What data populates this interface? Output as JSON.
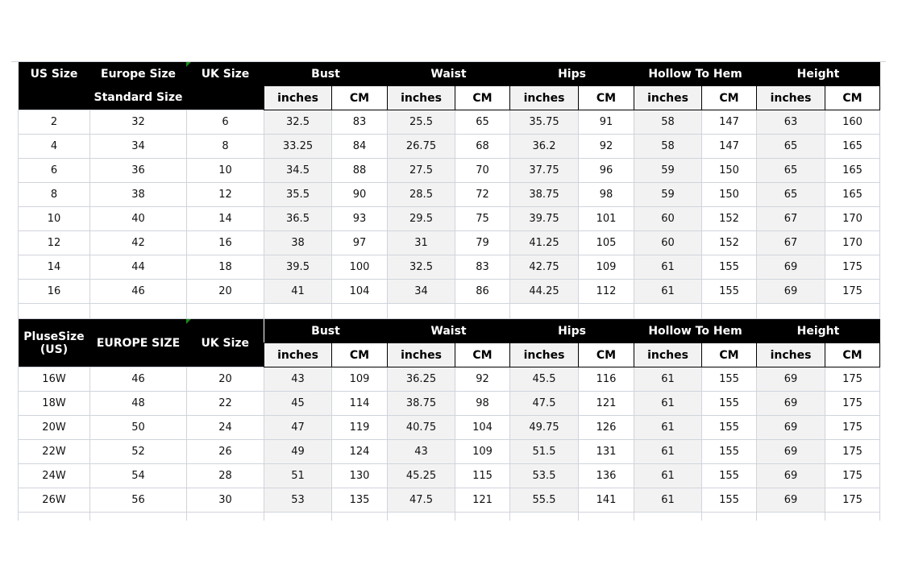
{
  "table1": {
    "headers": {
      "us": "US Size",
      "europe": "Europe Size",
      "europe_sub": "Standard Size",
      "uk": "UK Size"
    },
    "groups": [
      "Bust",
      "Waist",
      "Hips",
      "Hollow To Hem",
      "Height"
    ],
    "units": [
      "inches",
      "CM"
    ],
    "rows": [
      [
        "2",
        "32",
        "6",
        "32.5",
        "83",
        "25.5",
        "65",
        "35.75",
        "91",
        "58",
        "147",
        "63",
        "160"
      ],
      [
        "4",
        "34",
        "8",
        "33.25",
        "84",
        "26.75",
        "68",
        "36.2",
        "92",
        "58",
        "147",
        "65",
        "165"
      ],
      [
        "6",
        "36",
        "10",
        "34.5",
        "88",
        "27.5",
        "70",
        "37.75",
        "96",
        "59",
        "150",
        "65",
        "165"
      ],
      [
        "8",
        "38",
        "12",
        "35.5",
        "90",
        "28.5",
        "72",
        "38.75",
        "98",
        "59",
        "150",
        "65",
        "165"
      ],
      [
        "10",
        "40",
        "14",
        "36.5",
        "93",
        "29.5",
        "75",
        "39.75",
        "101",
        "60",
        "152",
        "67",
        "170"
      ],
      [
        "12",
        "42",
        "16",
        "38",
        "97",
        "31",
        "79",
        "41.25",
        "105",
        "60",
        "152",
        "67",
        "170"
      ],
      [
        "14",
        "44",
        "18",
        "39.5",
        "100",
        "32.5",
        "83",
        "42.75",
        "109",
        "61",
        "155",
        "69",
        "175"
      ],
      [
        "16",
        "46",
        "20",
        "41",
        "104",
        "34",
        "86",
        "44.25",
        "112",
        "61",
        "155",
        "69",
        "175"
      ]
    ]
  },
  "table2": {
    "headers": {
      "us": "PluseSize",
      "us2": "(US)",
      "europe": "EUROPE SIZE",
      "uk": "UK Size"
    },
    "groups": [
      "Bust",
      "Waist",
      "Hips",
      "Hollow To Hem",
      "Height"
    ],
    "units": [
      "inches",
      "CM"
    ],
    "rows": [
      [
        "16W",
        "46",
        "20",
        "43",
        "109",
        "36.25",
        "92",
        "45.5",
        "116",
        "61",
        "155",
        "69",
        "175"
      ],
      [
        "18W",
        "48",
        "22",
        "45",
        "114",
        "38.75",
        "98",
        "47.5",
        "121",
        "61",
        "155",
        "69",
        "175"
      ],
      [
        "20W",
        "50",
        "24",
        "47",
        "119",
        "40.75",
        "104",
        "49.75",
        "126",
        "61",
        "155",
        "69",
        "175"
      ],
      [
        "22W",
        "52",
        "26",
        "49",
        "124",
        "43",
        "109",
        "51.5",
        "131",
        "61",
        "155",
        "69",
        "175"
      ],
      [
        "24W",
        "54",
        "28",
        "51",
        "130",
        "45.25",
        "115",
        "53.5",
        "136",
        "61",
        "155",
        "69",
        "175"
      ],
      [
        "26W",
        "56",
        "30",
        "53",
        "135",
        "47.5",
        "121",
        "55.5",
        "141",
        "61",
        "155",
        "69",
        "175"
      ]
    ]
  },
  "colors": {
    "header_bg": "#000000",
    "inches_bg": "#f2f2f2",
    "grid": "#d0d4dc"
  }
}
